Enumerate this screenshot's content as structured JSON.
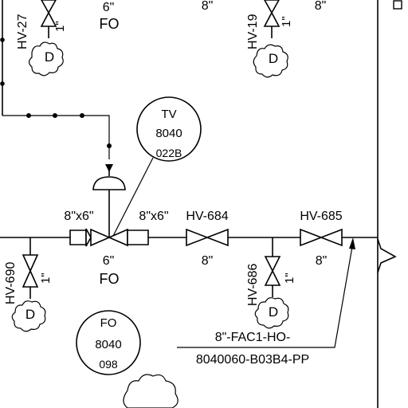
{
  "labels": {
    "top_left_valve_tag": "HV-27",
    "top_left_valve_size": "1\"",
    "top_center_size": "6\"",
    "top_center_fo": "FO",
    "top_mid_size": "8\"",
    "top_right_valve_tag": "HV-19",
    "top_right_valve_size": "1\"",
    "top_right_size": "8\"",
    "tv_instrument_line1": "TV",
    "tv_instrument_line2": "8040",
    "tv_instrument_line3": "022B",
    "reducer_left": "8\"x6\"",
    "reducer_right": "8\"x6\"",
    "hv684_tag": "HV-684",
    "hv684_size": "8\"",
    "hv685_tag": "HV-685",
    "hv685_size": "8\"",
    "hv690_tag": "HV-690",
    "hv690_size": "1\"",
    "tv_size": "6\"",
    "tv_fo": "FO",
    "hv686_tag": "HV-686",
    "hv686_size": "1\"",
    "fo_instrument_line1": "FO",
    "fo_instrument_line2": "8040",
    "fo_instrument_line3": "098",
    "line_spec_1": "8\"-FAC1-HO-",
    "line_spec_2": "8040060-B03B4-PP",
    "drain_symbol": "D"
  }
}
